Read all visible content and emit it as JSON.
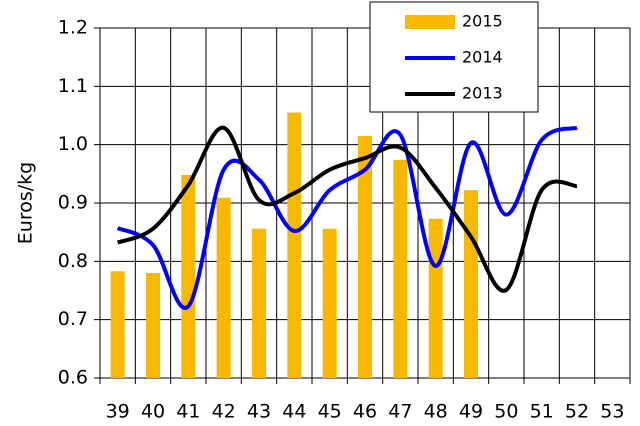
{
  "chart_data": {
    "type": "bar-line",
    "y_label": "Euros/kg",
    "categories": [
      "39",
      "40",
      "41",
      "42",
      "43",
      "44",
      "45",
      "46",
      "47",
      "48",
      "49",
      "50",
      "51",
      "52",
      "53"
    ],
    "series": [
      {
        "name": "2015",
        "type": "bar",
        "color": "#f9b800",
        "values": [
          0.783,
          0.78,
          0.948,
          0.909,
          0.856,
          1.055,
          0.856,
          1.015,
          0.974,
          0.873,
          0.922,
          null,
          null,
          null,
          null
        ]
      },
      {
        "name": "2014",
        "type": "line",
        "color": "#0000ff",
        "values": [
          0.857,
          0.828,
          0.723,
          0.957,
          0.94,
          0.852,
          0.922,
          0.957,
          1.017,
          0.792,
          1.003,
          0.88,
          1.008,
          1.029,
          null
        ]
      },
      {
        "name": "2013",
        "type": "line",
        "color": "#000000",
        "values": [
          0.832,
          0.856,
          0.931,
          1.029,
          0.905,
          0.917,
          0.957,
          0.977,
          0.995,
          0.926,
          0.842,
          0.751,
          0.922,
          0.929,
          null
        ]
      }
    ],
    "ylim": [
      0.6,
      1.2
    ],
    "yticks": [
      0.6,
      0.7,
      0.8,
      0.9,
      {
        "value": 1,
        "label": "1.0"
      },
      1.1,
      1.2
    ],
    "grid": true
  }
}
